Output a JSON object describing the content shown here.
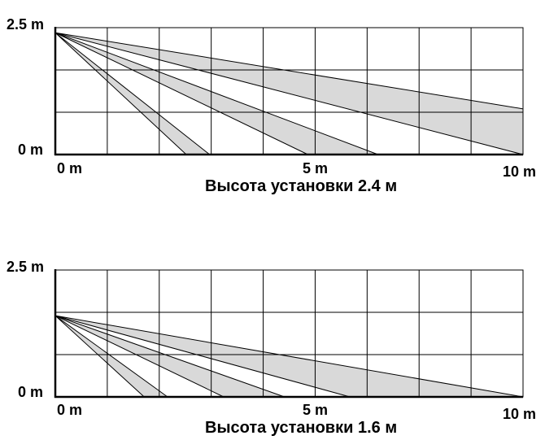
{
  "colors": {
    "background": "#ffffff",
    "grid_line": "#000000",
    "beam_fill": "#d9d9d9",
    "beam_stroke": "#000000",
    "text": "#000000"
  },
  "diagrams": [
    {
      "y_top_label": "2.5 m",
      "y_bottom_label": "0 m",
      "x_start_label": "0 m",
      "x_mid_label": "5 m",
      "x_end_label": "10 m",
      "caption": "Высота установки 2.4 м",
      "mount_height_m": 2.4,
      "height_range_m": [
        0,
        2.5
      ],
      "distance_range_m": [
        0,
        10
      ],
      "grid_columns": 9,
      "grid_rows": 3,
      "beams": [
        {
          "near_edge_floor_m": 2.8,
          "far_edge_floor_m": 3.3
        },
        {
          "near_edge_floor_m": 5.4,
          "far_edge_floor_m": 6.9
        },
        {
          "near_edge_floor_m": 10.0,
          "far_edge_height_m": 0.9
        }
      ]
    },
    {
      "y_top_label": "2.5 m",
      "y_bottom_label": "0 m",
      "x_start_label": "0 m",
      "x_mid_label": "5 m",
      "x_end_label": "10 m",
      "caption": "Высота установки 1.6 м",
      "mount_height_m": 1.6,
      "height_range_m": [
        0,
        2.5
      ],
      "distance_range_m": [
        0,
        10
      ],
      "grid_columns": 9,
      "grid_rows": 3,
      "beams": [
        {
          "near_edge_floor_m": 1.9,
          "far_edge_floor_m": 2.4
        },
        {
          "near_edge_floor_m": 3.6,
          "far_edge_floor_m": 4.9
        },
        {
          "near_edge_floor_m": 6.3,
          "far_edge_floor_m": 10.0
        }
      ]
    }
  ]
}
